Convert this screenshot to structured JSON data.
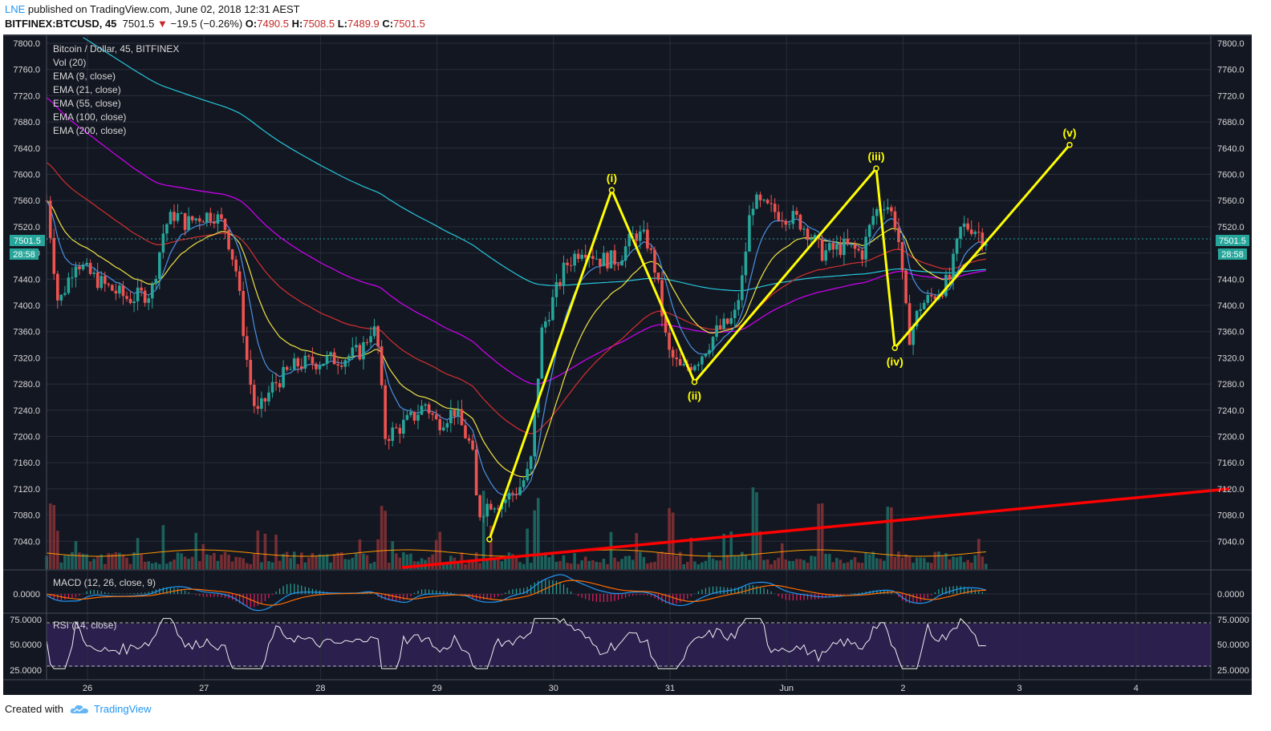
{
  "header": {
    "author": "LNE",
    "published_text": " published on TradingView.com, June 02, 2018 12:31 AEST",
    "symbol": "BITFINEX:BTCUSD, 45",
    "last": "7501.5",
    "change": "−19.5 (−0.26%)",
    "o_label": "O:",
    "o": "7490.5",
    "h_label": "H:",
    "h": "7508.5",
    "l_label": "L:",
    "l": "7489.9",
    "c_label": "C:",
    "c": "7501.5"
  },
  "legend": {
    "lines": [
      "Bitcoin / Dollar, 45, BITFINEX",
      "Vol (20)",
      "EMA (9, close)",
      "EMA (21, close)",
      "EMA (55, close)",
      "EMA (100, close)",
      "EMA (200, close)"
    ]
  },
  "price_tag": {
    "price": "7501.5",
    "countdown": "28:58"
  },
  "macd": {
    "title": "MACD (12, 26, close, 9)",
    "tick": "0.0000"
  },
  "rsi": {
    "title": "RSI (14, close)",
    "ticks": [
      "75.0000",
      "50.0000",
      "25.0000"
    ]
  },
  "footer": {
    "created_with": "Created with",
    "brand": "TradingView"
  },
  "colors": {
    "background": "#131722",
    "up": "#26a69a",
    "down": "#ef5350",
    "wave": "#ffff00",
    "trendline": "#ff0000",
    "ema9": "#4a90e2",
    "ema21": "#f0e442",
    "ema55": "#d32f2f",
    "ema100": "#d500f9",
    "ema200": "#26c6da"
  },
  "chart_data": {
    "type": "candlestick",
    "title": "Bitcoin / Dollar, 45, BITFINEX",
    "x_ticks": [
      "26",
      "27",
      "28",
      "29",
      "30",
      "31",
      "Jun",
      "2",
      "3",
      "4"
    ],
    "y_ticks": [
      7800,
      7760,
      7720,
      7680,
      7640,
      7600,
      7560,
      7520,
      7480,
      7440,
      7400,
      7360,
      7320,
      7280,
      7240,
      7200,
      7160,
      7120,
      7080,
      7040
    ],
    "ylim": [
      7000,
      7815
    ],
    "last_price": 7501.5,
    "price_path": [
      [
        -0.35,
        7560
      ],
      [
        -0.25,
        7400
      ],
      [
        -0.1,
        7470
      ],
      [
        0.0,
        7450
      ],
      [
        0.15,
        7430
      ],
      [
        0.35,
        7410
      ],
      [
        0.55,
        7420
      ],
      [
        0.66,
        7520
      ],
      [
        0.75,
        7540
      ],
      [
        0.85,
        7525
      ],
      [
        0.95,
        7535
      ],
      [
        1.08,
        7540
      ],
      [
        1.18,
        7520
      ],
      [
        1.28,
        7450
      ],
      [
        1.38,
        7300
      ],
      [
        1.45,
        7230
      ],
      [
        1.6,
        7280
      ],
      [
        1.8,
        7310
      ],
      [
        2.0,
        7315
      ],
      [
        2.2,
        7320
      ],
      [
        2.35,
        7330
      ],
      [
        2.45,
        7370
      ],
      [
        2.5,
        7330
      ],
      [
        2.55,
        7200
      ],
      [
        2.65,
        7210
      ],
      [
        2.8,
        7230
      ],
      [
        2.9,
        7250
      ],
      [
        3.0,
        7220
      ],
      [
        3.15,
        7240
      ],
      [
        3.3,
        7180
      ],
      [
        3.35,
        7080
      ],
      [
        3.45,
        7100
      ],
      [
        3.55,
        7100
      ],
      [
        3.7,
        7120
      ],
      [
        3.8,
        7150
      ],
      [
        3.9,
        7360
      ],
      [
        4.0,
        7410
      ],
      [
        4.1,
        7460
      ],
      [
        4.25,
        7490
      ],
      [
        4.4,
        7470
      ],
      [
        4.55,
        7470
      ],
      [
        4.7,
        7510
      ],
      [
        4.8,
        7500
      ],
      [
        4.88,
        7450
      ],
      [
        4.98,
        7330
      ],
      [
        5.1,
        7300
      ],
      [
        5.25,
        7320
      ],
      [
        5.4,
        7360
      ],
      [
        5.55,
        7380
      ],
      [
        5.62,
        7440
      ],
      [
        5.7,
        7560
      ],
      [
        5.8,
        7550
      ],
      [
        5.95,
        7540
      ],
      [
        6.1,
        7530
      ],
      [
        6.2,
        7510
      ],
      [
        6.3,
        7480
      ],
      [
        6.5,
        7490
      ],
      [
        6.65,
        7480
      ],
      [
        6.75,
        7540
      ],
      [
        6.85,
        7560
      ],
      [
        6.95,
        7520
      ],
      [
        7.0,
        7430
      ],
      [
        7.05,
        7350
      ],
      [
        7.15,
        7400
      ],
      [
        7.3,
        7420
      ],
      [
        7.4,
        7440
      ],
      [
        7.5,
        7520
      ],
      [
        7.6,
        7520
      ],
      [
        7.7,
        7501.5
      ]
    ],
    "elliott_wave": {
      "points": [
        {
          "label": "",
          "x": 3.45,
          "y": 7043
        },
        {
          "label": "(i)",
          "x": 4.5,
          "y": 7576
        },
        {
          "label": "(ii)",
          "x": 5.21,
          "y": 7283
        },
        {
          "label": "(iii)",
          "x": 6.77,
          "y": 7609
        },
        {
          "label": "(iv)",
          "x": 6.93,
          "y": 7335
        },
        {
          "label": "(v)",
          "x": 8.43,
          "y": 7645
        }
      ]
    },
    "trendline": {
      "start": {
        "x": 2.7,
        "y": 7000
      },
      "end": {
        "x": 9.8,
        "y": 7120
      }
    },
    "volume": {
      "peaks_at_x": [
        -0.3,
        2.55,
        3.4,
        3.85,
        5.0,
        5.72,
        6.3,
        6.88
      ]
    },
    "macd": {
      "zero": 0.0
    },
    "rsi": {
      "levels": [
        75,
        50,
        25
      ],
      "ylim": [
        20,
        80
      ]
    }
  }
}
